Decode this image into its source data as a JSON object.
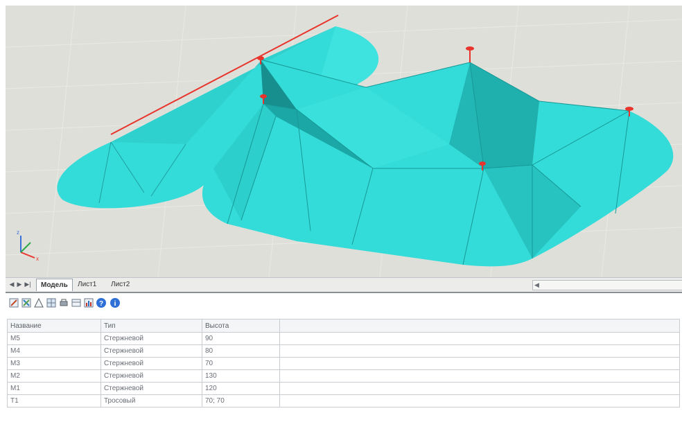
{
  "tabs": {
    "model": "Модель",
    "sheet1": "Лист1",
    "sheet2": "Лист2"
  },
  "axes": {
    "z": "z",
    "x": "x"
  },
  "toolbar": {
    "icons": [
      "edit-icon",
      "mast-edit-icon",
      "zone-icon",
      "grid-icon",
      "print-icon",
      "table-icon",
      "chart-icon",
      "help-icon",
      "info-icon"
    ]
  },
  "table": {
    "headers": [
      "Название",
      "Тип",
      "Высота"
    ],
    "rows": [
      [
        "M5",
        "Стержневой",
        "90"
      ],
      [
        "M4",
        "Стержневой",
        "80"
      ],
      [
        "M3",
        "Стержневой",
        "70"
      ],
      [
        "M2",
        "Стержневой",
        "130"
      ],
      [
        "M1",
        "Стержневой",
        "120"
      ],
      [
        "T1",
        "Тросовый",
        "70; 70"
      ]
    ]
  },
  "colors": {
    "surface": "#33dcd9",
    "surface_dark": "#1aa7a5",
    "lightning_rod": "#e8342c",
    "background": "#dedfd8"
  }
}
